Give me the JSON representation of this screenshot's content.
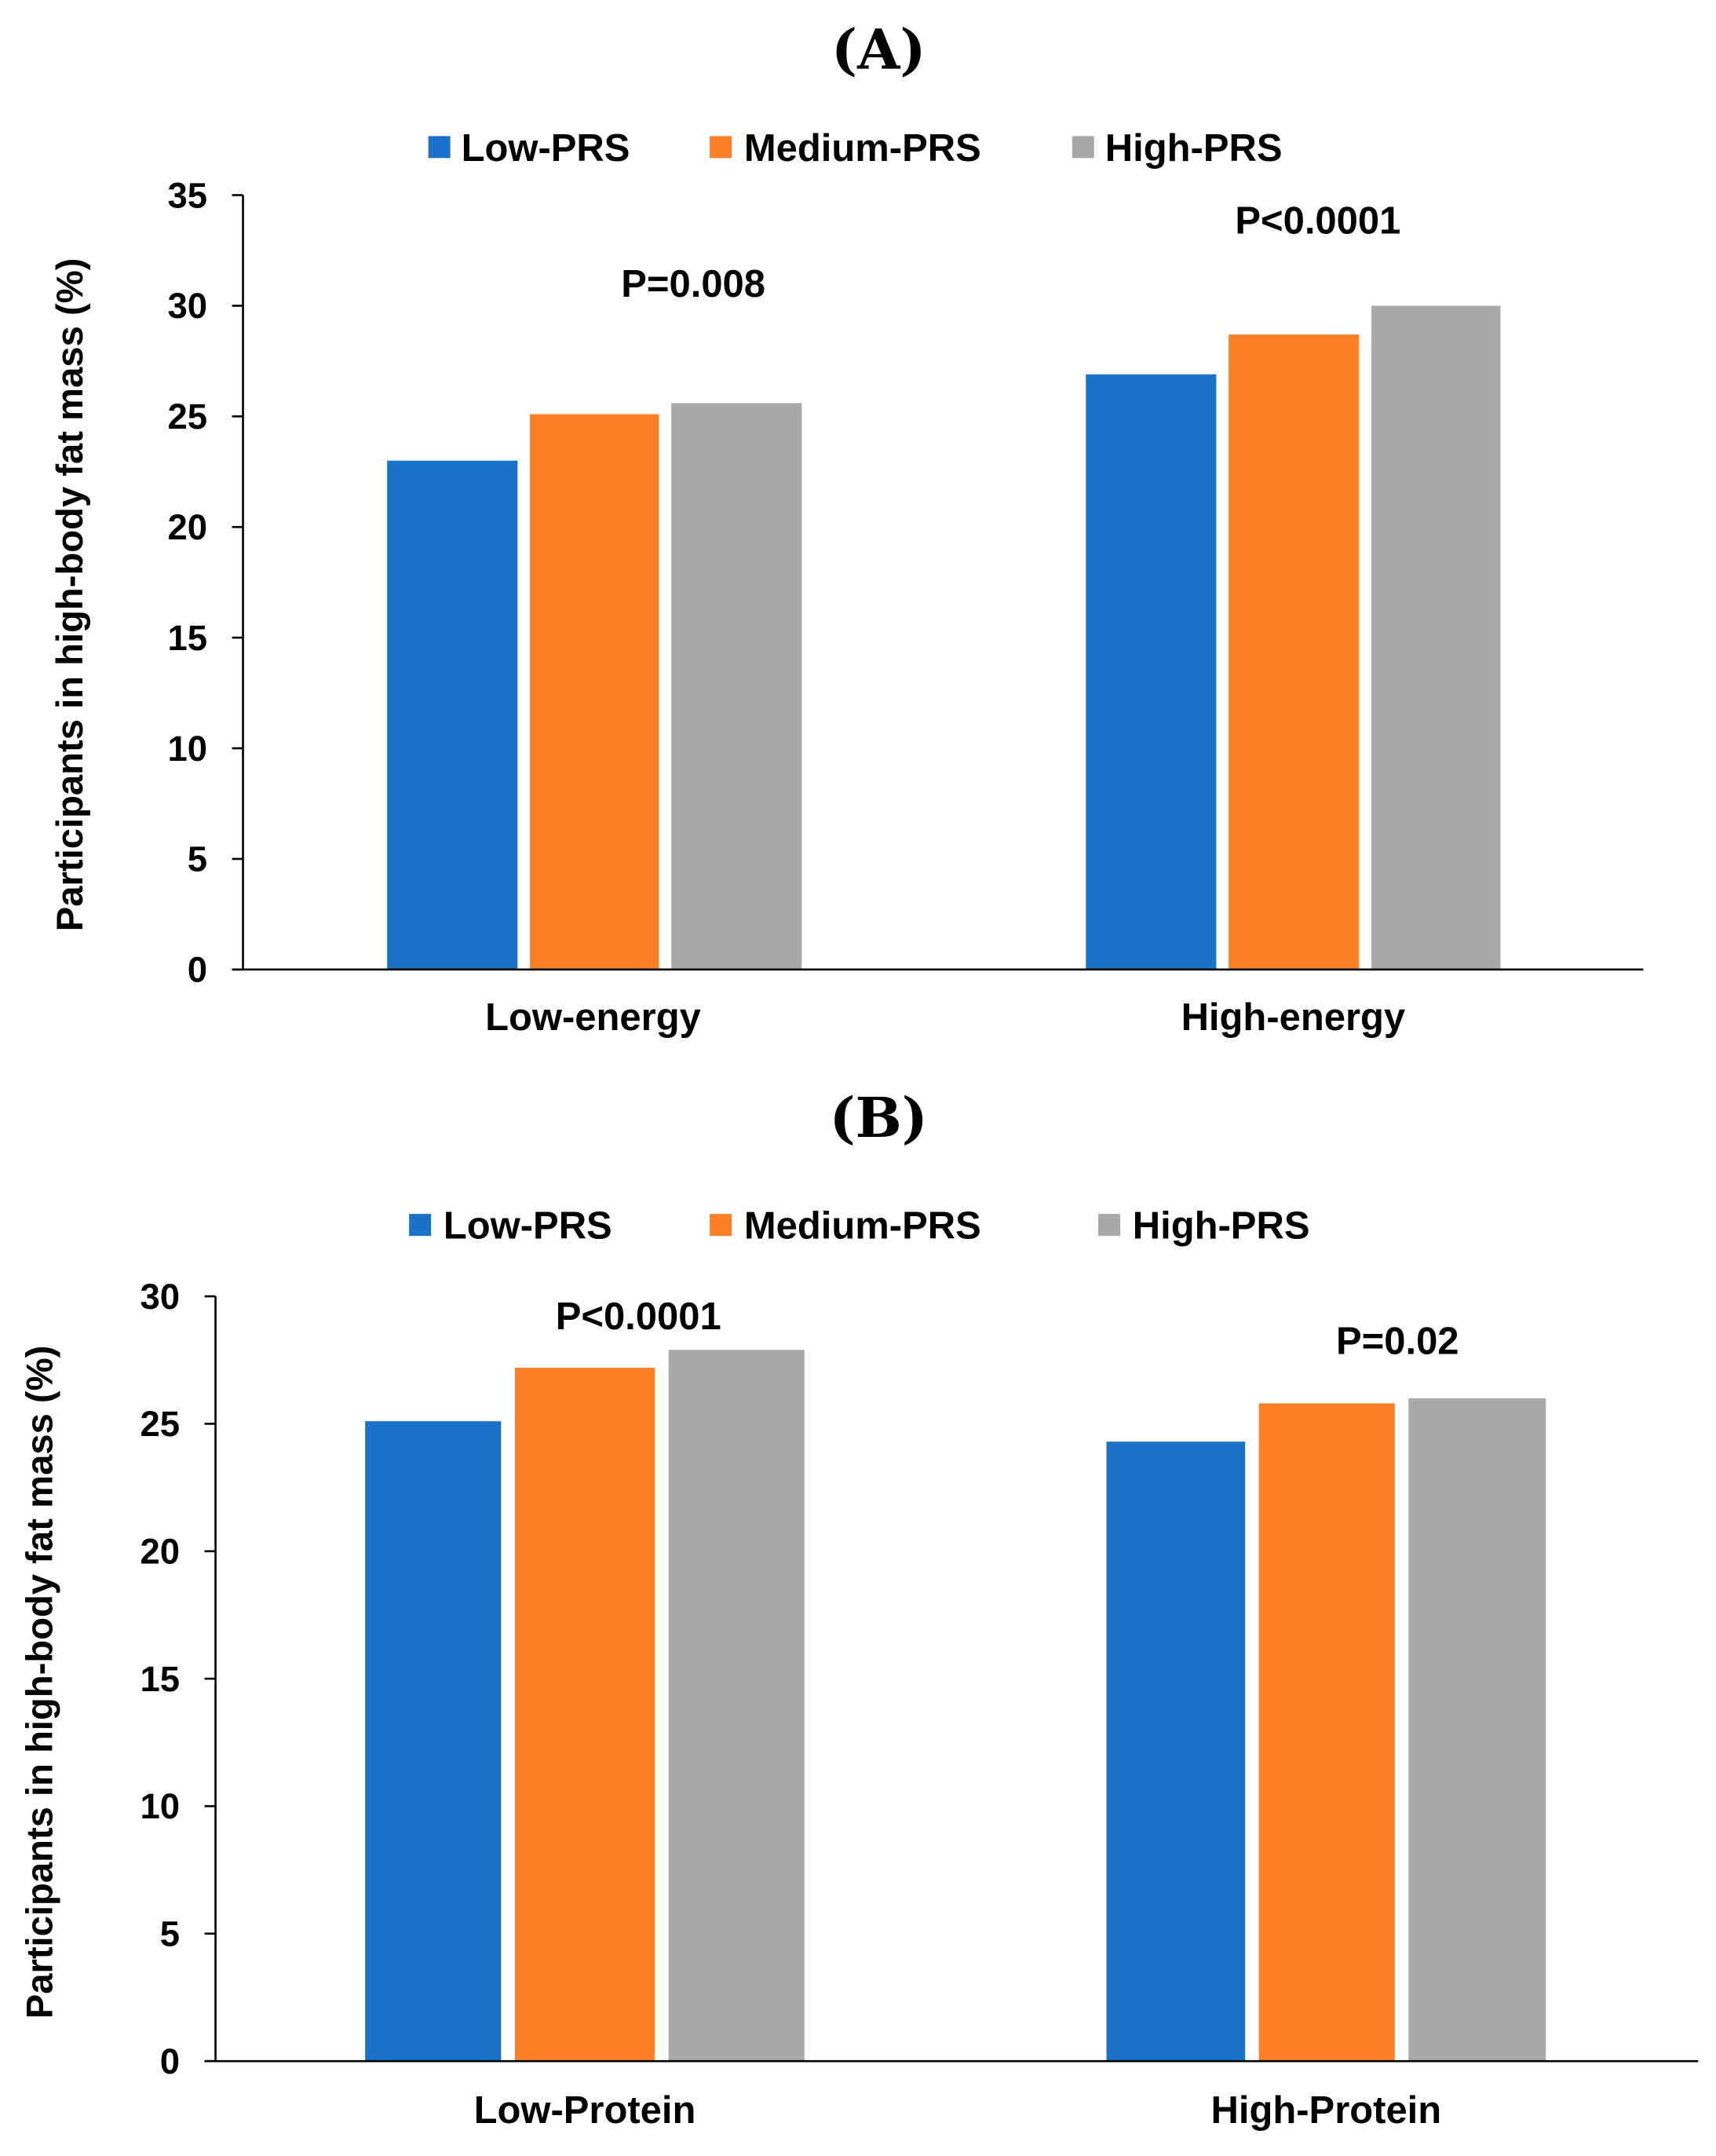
{
  "colors": {
    "Low-PRS": "#1a73c8",
    "Medium-PRS": "#fd7f28",
    "High-PRS": "#a9a9a9"
  },
  "chart_data": [
    {
      "type": "bar",
      "panel": "(A)",
      "title": "(A)",
      "legend": [
        "Low-PRS",
        "Medium-PRS",
        "High-PRS"
      ],
      "legend_placement": "top-center",
      "categories": [
        "Low-energy",
        "High-energy"
      ],
      "series": [
        {
          "name": "Low-PRS",
          "values": [
            23.0,
            26.9
          ]
        },
        {
          "name": "Medium-PRS",
          "values": [
            25.1,
            28.7
          ]
        },
        {
          "name": "High-PRS",
          "values": [
            25.6,
            30.0
          ]
        }
      ],
      "annotations": [
        "P=0.008",
        "P<0.0001"
      ],
      "xlabel": "",
      "ylabel": "Participants in high-body fat mass (%)",
      "ylim": [
        0,
        35
      ],
      "yticks": [
        "0",
        "5",
        "10",
        "15",
        "20",
        "25",
        "30",
        "35"
      ],
      "grid": false
    },
    {
      "type": "bar",
      "panel": "(B)",
      "title": "(B)",
      "legend": [
        "Low-PRS",
        "Medium-PRS",
        "High-PRS"
      ],
      "legend_placement": "top-center",
      "categories": [
        "Low-Protein",
        "High-Protein"
      ],
      "series": [
        {
          "name": "Low-PRS",
          "values": [
            25.1,
            24.3
          ]
        },
        {
          "name": "Medium-PRS",
          "values": [
            27.2,
            25.8
          ]
        },
        {
          "name": "High-PRS",
          "values": [
            27.9,
            26.0
          ]
        }
      ],
      "annotations": [
        "P<0.0001",
        "P=0.02"
      ],
      "xlabel": "",
      "ylabel": "Participants in high-body fat mass (%)",
      "ylim": [
        0,
        30
      ],
      "yticks": [
        "0",
        "5",
        "10",
        "15",
        "20",
        "25",
        "30"
      ],
      "grid": false
    }
  ]
}
